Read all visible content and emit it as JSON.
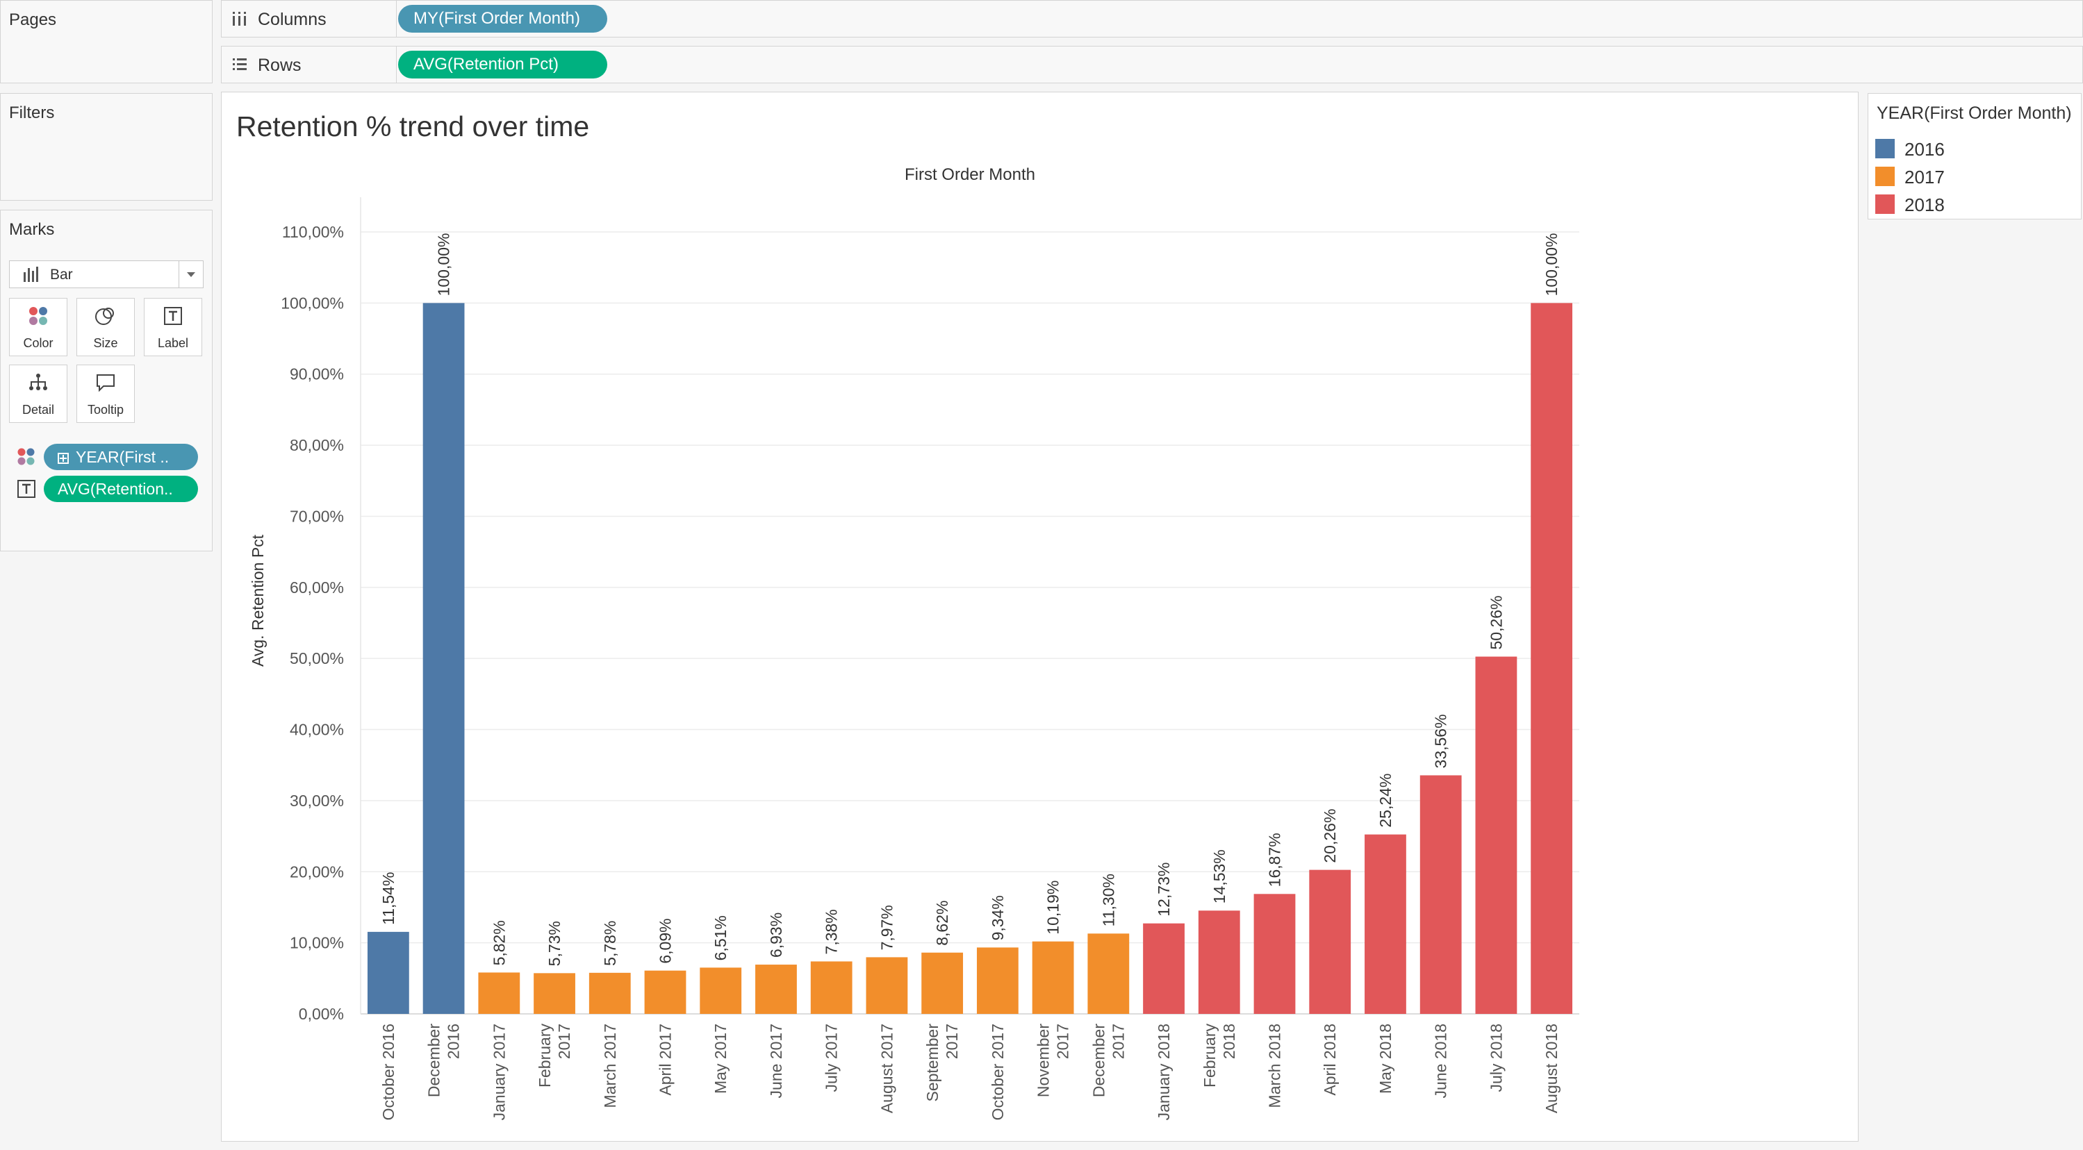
{
  "sidebar": {
    "pages_title": "Pages",
    "filters_title": "Filters",
    "marks_title": "Marks",
    "mark_type": "Bar",
    "buttons": [
      "Color",
      "Size",
      "Label",
      "Detail",
      "Tooltip"
    ],
    "color_pill": "YEAR(First ..",
    "label_pill": "AVG(Retention.."
  },
  "shelves": {
    "columns_label": "Columns",
    "columns_pill": "MY(First Order Month)",
    "rows_label": "Rows",
    "rows_pill": "AVG(Retention Pct)"
  },
  "legend": {
    "title": "YEAR(First Order Month)",
    "items": [
      {
        "label": "2016",
        "color": "#4e79a7"
      },
      {
        "label": "2017",
        "color": "#f28e2b"
      },
      {
        "label": "2018",
        "color": "#e15759"
      }
    ]
  },
  "chart_data": {
    "type": "bar",
    "title": "Retention % trend over time",
    "xlabel": "First Order Month",
    "ylabel": "Avg. Retention Pct",
    "ylim": [
      0,
      110
    ],
    "yticks": [
      0,
      10,
      20,
      30,
      40,
      50,
      60,
      70,
      80,
      90,
      100,
      110
    ],
    "ytick_labels": [
      "0,00%",
      "10,00%",
      "20,00%",
      "30,00%",
      "40,00%",
      "50,00%",
      "60,00%",
      "70,00%",
      "80,00%",
      "90,00%",
      "100,00%",
      "110,00%"
    ],
    "grid": true,
    "legend_position": "right",
    "categories": [
      [
        "October 2016"
      ],
      [
        "December",
        "2016"
      ],
      [
        "January 2017"
      ],
      [
        "February",
        "2017"
      ],
      [
        "March 2017"
      ],
      [
        "April 2017"
      ],
      [
        "May 2017"
      ],
      [
        "June 2017"
      ],
      [
        "July 2017"
      ],
      [
        "August 2017"
      ],
      [
        "September",
        "2017"
      ],
      [
        "October 2017"
      ],
      [
        "November",
        "2017"
      ],
      [
        "December",
        "2017"
      ],
      [
        "January 2018"
      ],
      [
        "February",
        "2018"
      ],
      [
        "March 2018"
      ],
      [
        "April 2018"
      ],
      [
        "May 2018"
      ],
      [
        "June 2018"
      ],
      [
        "July 2018"
      ],
      [
        "August 2018"
      ]
    ],
    "values": [
      11.54,
      100.0,
      5.82,
      5.73,
      5.78,
      6.09,
      6.51,
      6.93,
      7.38,
      7.97,
      8.62,
      9.34,
      10.19,
      11.3,
      12.73,
      14.53,
      16.87,
      20.26,
      25.24,
      33.56,
      50.26,
      100.0
    ],
    "data_labels": [
      "11,54%",
      "100,00%",
      "5,82%",
      "5,73%",
      "5,78%",
      "6,09%",
      "6,51%",
      "6,93%",
      "7,38%",
      "7,97%",
      "8,62%",
      "9,34%",
      "10,19%",
      "11,30%",
      "12,73%",
      "14,53%",
      "16,87%",
      "20,26%",
      "25,24%",
      "33,56%",
      "50,26%",
      "100,00%"
    ],
    "year": [
      "2016",
      "2016",
      "2017",
      "2017",
      "2017",
      "2017",
      "2017",
      "2017",
      "2017",
      "2017",
      "2017",
      "2017",
      "2017",
      "2017",
      "2018",
      "2018",
      "2018",
      "2018",
      "2018",
      "2018",
      "2018",
      "2018"
    ]
  }
}
